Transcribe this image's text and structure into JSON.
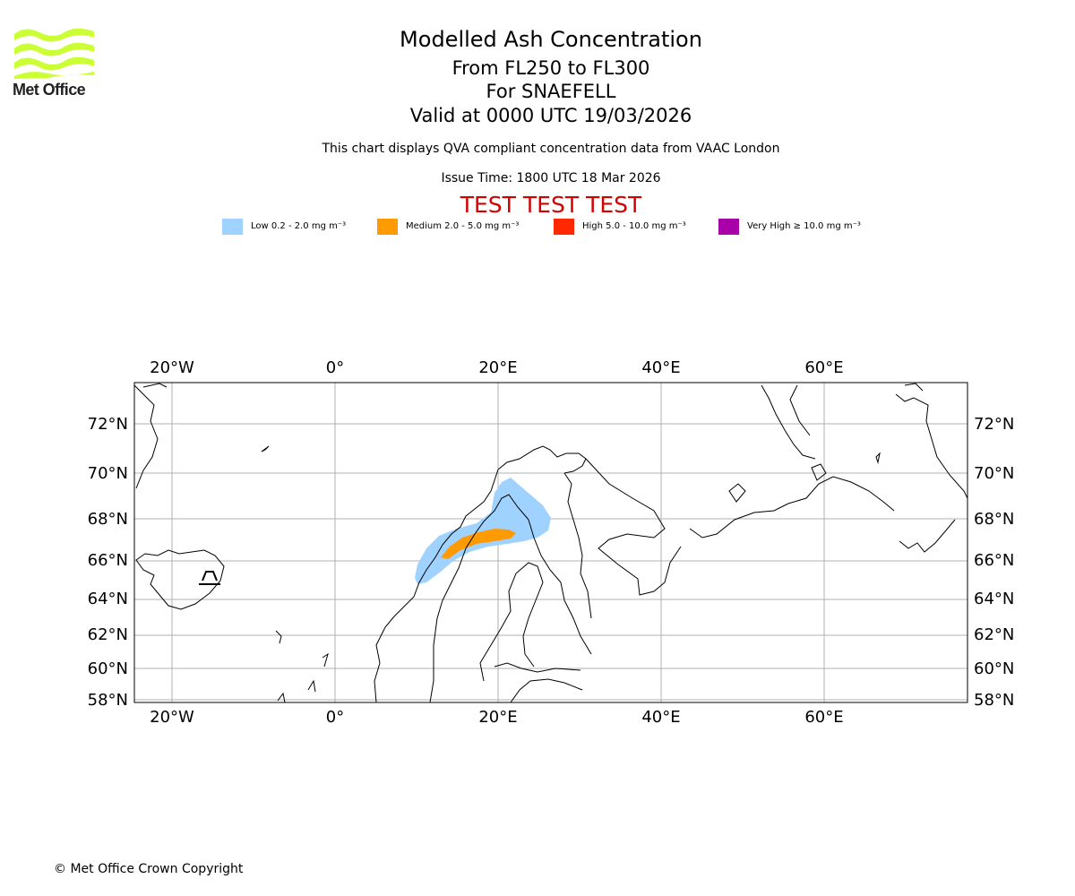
{
  "logo": {
    "text": "Met Office",
    "color": "#ccff33"
  },
  "header": {
    "title": "Modelled Ash Concentration",
    "levels": "From FL250 to FL300",
    "volcano": "For SNAEFELL",
    "valid": "Valid at 0000 UTC 19/03/2026",
    "note": "This chart displays QVA compliant concentration data from VAAC London",
    "issue": "Issue Time: 1800 UTC 18 Mar 2026",
    "test": "TEST TEST TEST"
  },
  "legend": [
    {
      "label": "Low 0.2 - 2.0 mg m⁻³",
      "color": "#a0d2ff"
    },
    {
      "label": "Medium 2.0 - 5.0 mg m⁻³",
      "color": "#ff9a00"
    },
    {
      "label": "High 5.0 - 10.0 mg m⁻³",
      "color": "#ff2800"
    },
    {
      "label": "Very High ≥ 10.0 mg m⁻³",
      "color": "#aa00aa"
    }
  ],
  "map": {
    "lon_labels": [
      "20°W",
      "0°",
      "20°E",
      "40°E",
      "60°E"
    ],
    "lat_labels": [
      "72°N",
      "70°N",
      "68°N",
      "66°N",
      "64°N",
      "62°N",
      "60°N",
      "58°N"
    ]
  },
  "footer": {
    "copyright": "© Met Office Crown Copyright"
  }
}
